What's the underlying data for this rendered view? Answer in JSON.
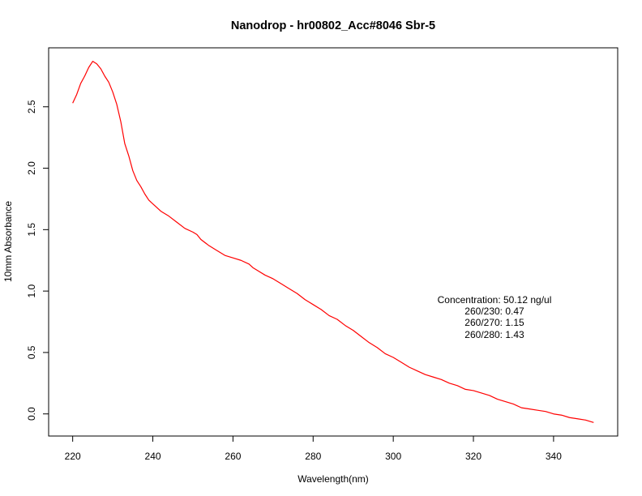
{
  "chart_data": {
    "type": "line",
    "title": "Nanodrop - hr00802_Acc#8046 Sbr-5",
    "xlabel": "Wavelength(nm)",
    "ylabel": "10mm Absorbance",
    "xlim": [
      214,
      356
    ],
    "ylim": [
      -0.18,
      2.98
    ],
    "x_ticks": [
      220,
      240,
      260,
      280,
      300,
      320,
      340
    ],
    "x_tick_labels": [
      "220",
      "240",
      "260",
      "280",
      "300",
      "320",
      "340"
    ],
    "y_ticks": [
      0.0,
      0.5,
      1.0,
      1.5,
      2.0,
      2.5
    ],
    "y_tick_labels": [
      "0.0",
      "0.5",
      "1.0",
      "1.5",
      "2.0",
      "2.5"
    ],
    "grid": false,
    "series": [
      {
        "color": "#ff0000",
        "x": [
          220,
          221,
          222,
          223,
          224,
          225,
          226,
          227,
          228,
          229,
          230,
          231,
          232,
          233,
          234,
          235,
          236,
          237,
          238,
          239,
          240,
          242,
          244,
          246,
          248,
          250,
          251,
          252,
          254,
          256,
          258,
          260,
          262,
          264,
          265,
          266,
          268,
          270,
          272,
          274,
          276,
          278,
          280,
          282,
          284,
          286,
          288,
          290,
          292,
          294,
          296,
          298,
          300,
          302,
          304,
          306,
          308,
          310,
          312,
          314,
          316,
          318,
          320,
          322,
          324,
          326,
          328,
          330,
          332,
          334,
          336,
          338,
          340,
          342,
          344,
          346,
          348,
          350
        ],
        "y": [
          2.53,
          2.6,
          2.69,
          2.75,
          2.82,
          2.87,
          2.85,
          2.81,
          2.75,
          2.7,
          2.62,
          2.52,
          2.38,
          2.2,
          2.1,
          1.98,
          1.9,
          1.85,
          1.79,
          1.74,
          1.71,
          1.65,
          1.61,
          1.56,
          1.51,
          1.48,
          1.46,
          1.42,
          1.37,
          1.33,
          1.29,
          1.27,
          1.25,
          1.22,
          1.19,
          1.17,
          1.13,
          1.1,
          1.06,
          1.02,
          0.98,
          0.93,
          0.89,
          0.85,
          0.8,
          0.77,
          0.72,
          0.68,
          0.63,
          0.58,
          0.54,
          0.49,
          0.46,
          0.42,
          0.38,
          0.35,
          0.32,
          0.3,
          0.28,
          0.25,
          0.23,
          0.2,
          0.19,
          0.17,
          0.15,
          0.12,
          0.1,
          0.08,
          0.05,
          0.04,
          0.03,
          0.02,
          0.0,
          -0.01,
          -0.03,
          -0.04,
          -0.05,
          -0.07
        ]
      }
    ],
    "annotations": [
      "Concentration: 50.12 ng/ul",
      "260/230: 0.47",
      "260/270: 1.15",
      "260/280: 1.43"
    ]
  }
}
